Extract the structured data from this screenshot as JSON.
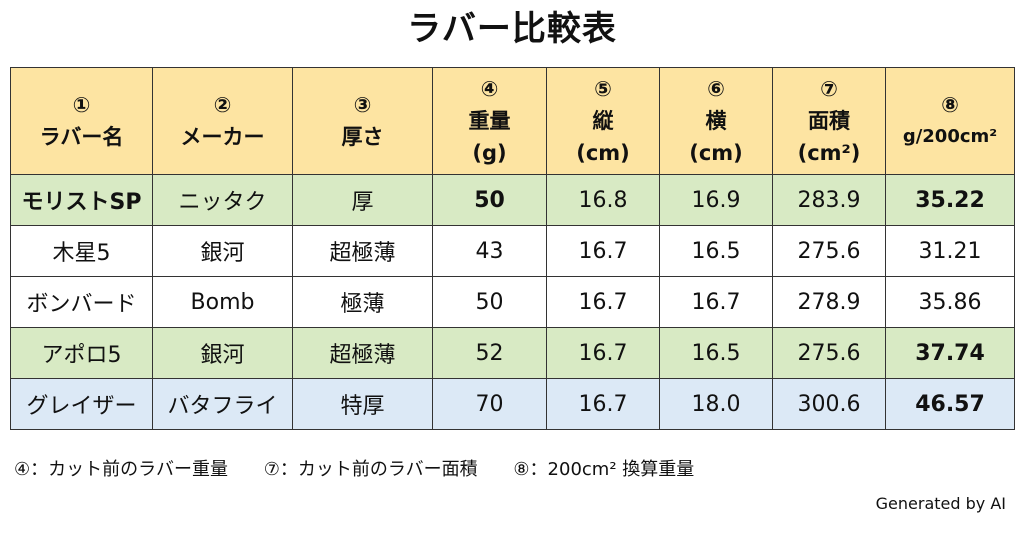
{
  "title": "ラバー比較表",
  "colors": {
    "header": "#fde4a2",
    "green": "#d8eac4",
    "white": "#ffffff",
    "blue": "#dce9f6",
    "border": "#333333"
  },
  "headers": [
    {
      "num": "①",
      "line1": "ラバー名",
      "line2": ""
    },
    {
      "num": "②",
      "line1": "メーカー",
      "line2": ""
    },
    {
      "num": "③",
      "line1": "厚さ",
      "line2": ""
    },
    {
      "num": "④",
      "line1": "重量",
      "line2": "(g)"
    },
    {
      "num": "⑤",
      "line1": "縦",
      "line2": "(cm)"
    },
    {
      "num": "⑥",
      "line1": "横",
      "line2": "(cm)"
    },
    {
      "num": "⑦",
      "line1": "面積",
      "line2": "(cm²)"
    },
    {
      "num": "⑧",
      "line1": "g/200cm²",
      "line2": ""
    }
  ],
  "rows": [
    {
      "name": "モリストSP",
      "maker": "ニッタク",
      "thickness": "厚",
      "weight": "50",
      "length": "16.8",
      "width": "16.9",
      "area": "283.9",
      "per200": "35.22",
      "bg": "green"
    },
    {
      "name": "木星5",
      "maker": "銀河",
      "thickness": "超極薄",
      "weight": "43",
      "length": "16.7",
      "width": "16.5",
      "area": "275.6",
      "per200": "31.21",
      "bg": "white"
    },
    {
      "name": "ボンバード",
      "maker": "Bomb",
      "thickness": "極薄",
      "weight": "50",
      "length": "16.7",
      "width": "16.7",
      "area": "278.9",
      "per200": "35.86",
      "bg": "white"
    },
    {
      "name": "アポロ5",
      "maker": "銀河",
      "thickness": "超極薄",
      "weight": "52",
      "length": "16.7",
      "width": "16.5",
      "area": "275.6",
      "per200": "37.74",
      "bg": "green"
    },
    {
      "name": "グレイザー",
      "maker": "バタフライ",
      "thickness": "特厚",
      "weight": "70",
      "length": "16.7",
      "width": "18.0",
      "area": "300.6",
      "per200": "46.57",
      "bg": "blue"
    }
  ],
  "footnotes": [
    "④：カット前のラバー重量",
    "⑦：カット前のラバー面積",
    "⑧：200cm² 換算重量"
  ],
  "credit": "Generated by AI"
}
